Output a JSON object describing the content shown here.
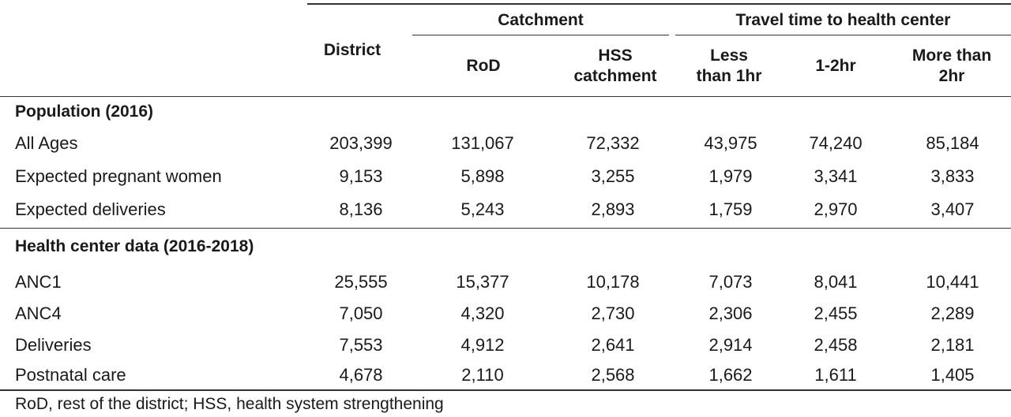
{
  "table": {
    "header": {
      "district": "District",
      "group_catchment": "Catchment",
      "group_travel": "Travel time to health center",
      "columns": [
        {
          "line1": "RoD",
          "line2": ""
        },
        {
          "line1": "HSS",
          "line2": "catchment"
        },
        {
          "line1": "Less",
          "line2": "than 1hr"
        },
        {
          "line1": "1-2hr",
          "line2": ""
        },
        {
          "line1": "More than",
          "line2": "2hr"
        }
      ]
    },
    "sections": [
      {
        "title": "Population (2016)",
        "rows": [
          {
            "label": "All Ages",
            "values": [
              "203,399",
              "131,067",
              "72,332",
              "43,975",
              "74,240",
              "85,184"
            ]
          },
          {
            "label": "Expected pregnant women",
            "values": [
              "9,153",
              "5,898",
              "3,255",
              "1,979",
              "3,341",
              "3,833"
            ]
          },
          {
            "label": "Expected deliveries",
            "values": [
              "8,136",
              "5,243",
              "2,893",
              "1,759",
              "2,970",
              "3,407"
            ]
          }
        ]
      },
      {
        "title": "Health center data (2016-2018)",
        "rows": [
          {
            "label": "ANC1",
            "values": [
              "25,555",
              "15,377",
              "10,178",
              "7,073",
              "8,041",
              "10,441"
            ]
          },
          {
            "label": "ANC4",
            "values": [
              "7,050",
              "4,320",
              "2,730",
              "2,306",
              "2,455",
              "2,289"
            ]
          },
          {
            "label": "Deliveries",
            "values": [
              "7,553",
              "4,912",
              "2,641",
              "2,914",
              "2,458",
              "2,181"
            ]
          },
          {
            "label": "Postnatal care",
            "values": [
              "4,678",
              "2,110",
              "2,568",
              "1,662",
              "1,611",
              "1,405"
            ]
          }
        ]
      }
    ],
    "footnote": "RoD, rest of the district; HSS, health system strengthening"
  }
}
